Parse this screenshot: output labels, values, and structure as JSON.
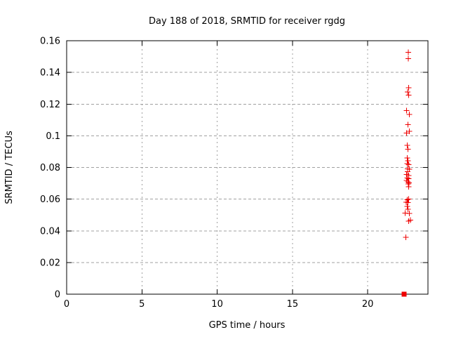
{
  "chart_data": {
    "type": "scatter",
    "title": "Day 188 of 2018, SRMTID for receiver rgdg",
    "xlabel": "GPS time / hours",
    "ylabel": "SRMTID / TECUs",
    "xlim": [
      0,
      24
    ],
    "ylim": [
      0,
      0.16
    ],
    "xticks": [
      0,
      5,
      10,
      15,
      20
    ],
    "xtick_labels": [
      "0",
      "5",
      "10",
      "15",
      "20"
    ],
    "yticks": [
      0,
      0.02,
      0.04,
      0.06,
      0.08,
      0.1,
      0.12,
      0.14,
      0.16
    ],
    "ytick_labels": [
      "0",
      "0.02",
      "0.04",
      "0.06",
      "0.08",
      "0.1",
      "0.12",
      "0.14",
      "0.16"
    ],
    "grid": true,
    "legend": "none",
    "colors": {
      "marker": "#ee0000",
      "grid": "#a0a0a0",
      "frame": "#000000",
      "background": "#ffffff",
      "text": "#000000"
    },
    "series": [
      {
        "name": "SRMTID",
        "marker": "plus",
        "points": [
          [
            22.69,
            0.1526
          ],
          [
            22.69,
            0.1487
          ],
          [
            22.71,
            0.1303
          ],
          [
            22.64,
            0.1277
          ],
          [
            22.71,
            0.1257
          ],
          [
            22.59,
            0.1158
          ],
          [
            22.76,
            0.1134
          ],
          [
            22.68,
            0.1071
          ],
          [
            22.76,
            0.1029
          ],
          [
            22.59,
            0.1018
          ],
          [
            22.63,
            0.094
          ],
          [
            22.68,
            0.0916
          ],
          [
            22.63,
            0.086
          ],
          [
            22.68,
            0.0842
          ],
          [
            22.63,
            0.0824
          ],
          [
            22.72,
            0.0817
          ],
          [
            22.65,
            0.0792
          ],
          [
            22.76,
            0.0789
          ],
          [
            22.65,
            0.0774
          ],
          [
            22.59,
            0.0756
          ],
          [
            22.71,
            0.075
          ],
          [
            22.62,
            0.0734
          ],
          [
            22.73,
            0.0729
          ],
          [
            22.59,
            0.0719
          ],
          [
            22.67,
            0.0709
          ],
          [
            22.74,
            0.0702
          ],
          [
            22.69,
            0.0695
          ],
          [
            22.71,
            0.0678
          ],
          [
            22.71,
            0.06
          ],
          [
            22.62,
            0.0596
          ],
          [
            22.56,
            0.0581
          ],
          [
            22.68,
            0.0578
          ],
          [
            22.62,
            0.0555
          ],
          [
            22.68,
            0.0536
          ],
          [
            22.48,
            0.0513
          ],
          [
            22.76,
            0.051
          ],
          [
            22.73,
            0.0461
          ],
          [
            22.84,
            0.0467
          ],
          [
            22.54,
            0.0358
          ]
        ]
      },
      {
        "name": "zero-marker",
        "marker": "filled-square",
        "points": [
          [
            22.42,
            0.0
          ]
        ]
      }
    ]
  }
}
